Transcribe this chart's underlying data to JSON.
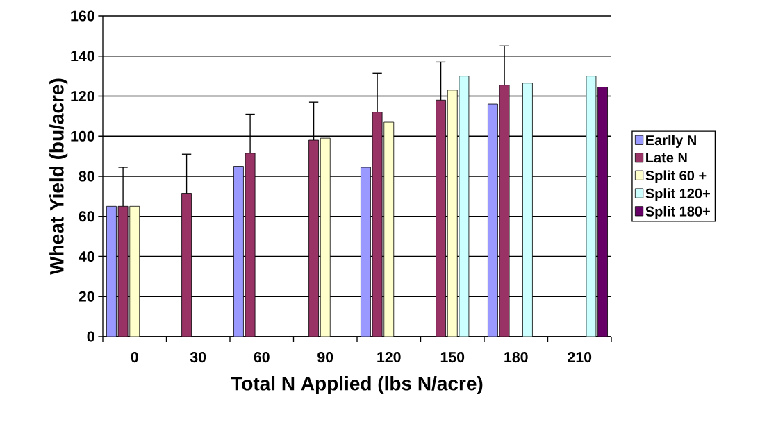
{
  "chart_data": {
    "type": "bar",
    "xlabel": "Total N Applied (lbs N/acre)",
    "ylabel": "Wheat Yield (bu/acre)",
    "categories": [
      "0",
      "30",
      "60",
      "90",
      "120",
      "150",
      "180",
      "210"
    ],
    "ylim": [
      0,
      160
    ],
    "yticks": [
      0,
      20,
      40,
      60,
      80,
      100,
      120,
      140,
      160
    ],
    "grid": "y",
    "legend": "right",
    "series": [
      {
        "name": "Earlly N",
        "color": "#9999ff",
        "values": [
          65,
          null,
          85,
          null,
          84.5,
          null,
          116,
          null
        ]
      },
      {
        "name": "Late N",
        "color": "#993366",
        "values": [
          65,
          71.5,
          91.5,
          98,
          112,
          118,
          125.5,
          null
        ],
        "errors": [
          [
            65,
            84.5
          ],
          [
            71.5,
            91
          ],
          [
            91.5,
            111
          ],
          [
            98,
            117
          ],
          [
            112,
            131.5
          ],
          [
            118,
            137
          ],
          [
            125.5,
            145
          ],
          null
        ]
      },
      {
        "name": "Split 60 +",
        "color": "#ffffcc",
        "values": [
          65,
          null,
          null,
          99,
          107,
          123,
          null,
          null
        ]
      },
      {
        "name": "Split 120+",
        "color": "#ccffff",
        "values": [
          null,
          null,
          null,
          null,
          null,
          130,
          126.5,
          130
        ]
      },
      {
        "name": "Split 180+",
        "color": "#660066",
        "values": [
          null,
          null,
          null,
          null,
          null,
          null,
          null,
          124.5
        ]
      }
    ]
  }
}
